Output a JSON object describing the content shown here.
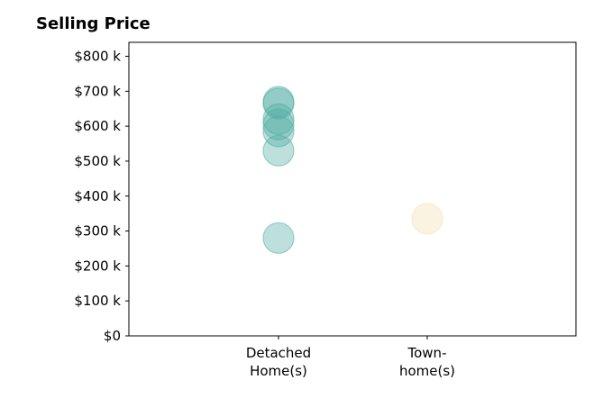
{
  "chart_data": {
    "type": "scatter",
    "title": "Selling Price",
    "xlabel": "",
    "ylabel": "",
    "categories": [
      "Detached\nHome(s)",
      "Town-\nhome(s)"
    ],
    "ylim": [
      0,
      840000
    ],
    "y_ticks": [
      {
        "value": 0,
        "label": "$0"
      },
      {
        "value": 100000,
        "label": "$100 k"
      },
      {
        "value": 200000,
        "label": "$200 k"
      },
      {
        "value": 300000,
        "label": "$300 k"
      },
      {
        "value": 400000,
        "label": "$400 k"
      },
      {
        "value": 500000,
        "label": "$500 k"
      },
      {
        "value": 600000,
        "label": "$600 k"
      },
      {
        "value": 700000,
        "label": "$700 k"
      },
      {
        "value": 800000,
        "label": "$800 k"
      }
    ],
    "grid": false,
    "series": [
      {
        "category": "Detached\nHome(s)",
        "color": "#4dac9f",
        "values": [
          280000,
          530000,
          585000,
          605000,
          620000,
          665000,
          670000
        ]
      },
      {
        "category": "Town-\nhome(s)",
        "color": "#f3dfb0",
        "values": [
          335000
        ]
      }
    ]
  }
}
